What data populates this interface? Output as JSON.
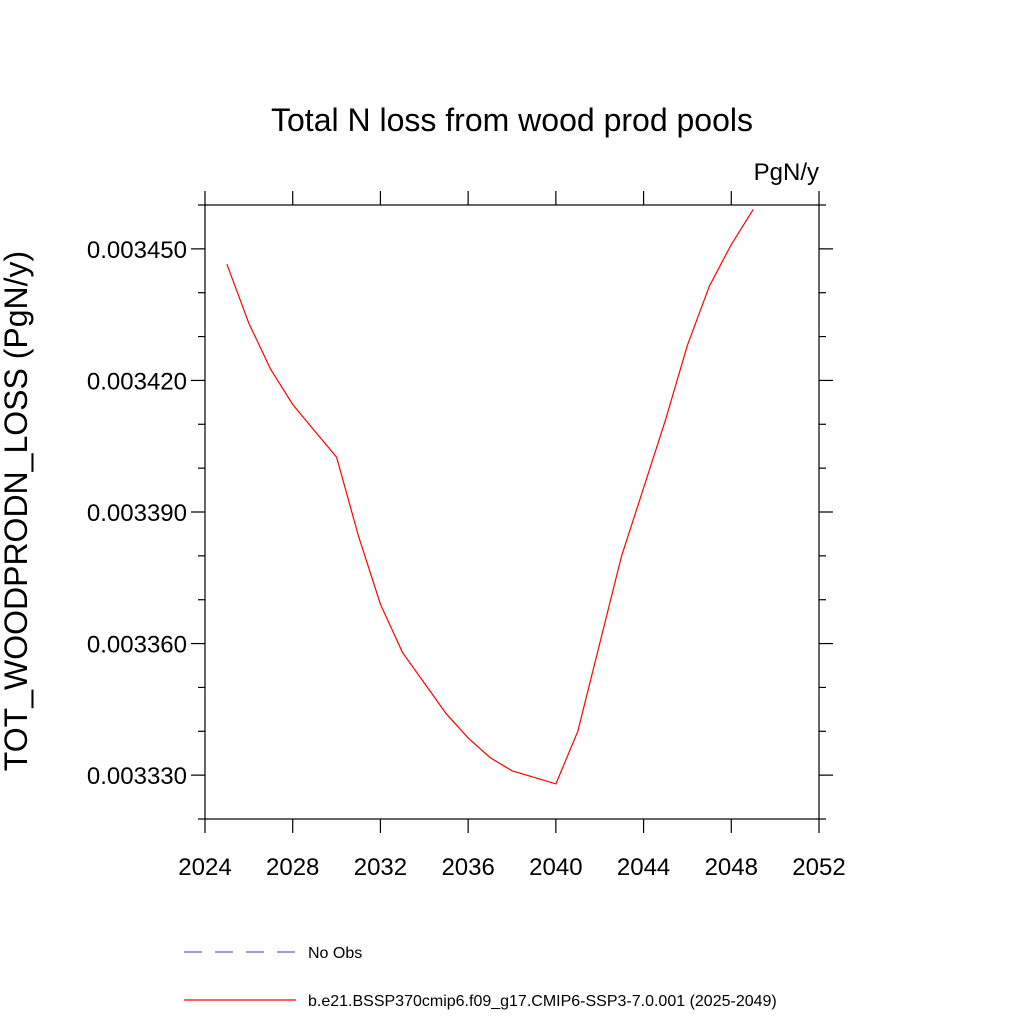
{
  "chart_data": {
    "type": "line",
    "title": "Total N loss from wood prod pools",
    "units": "PgN/y",
    "ylabel": "TOT_WOODPRODN_LOSS  (PgN/y)",
    "xlabel": "",
    "xlim": [
      2024,
      2052
    ],
    "ylim": [
      0.00332,
      0.00346
    ],
    "x_ticks": [
      2024,
      2028,
      2032,
      2036,
      2040,
      2044,
      2048,
      2052
    ],
    "x_tick_labels": [
      "2024",
      "2028",
      "2032",
      "2036",
      "2040",
      "2044",
      "2048",
      "2052"
    ],
    "y_ticks": [
      0.00333,
      0.00336,
      0.00339,
      0.00342,
      0.00345
    ],
    "y_tick_labels": [
      "0.003330",
      "0.003360",
      "0.003390",
      "0.003420",
      "0.003450"
    ],
    "grid": false,
    "legend_position": "bottom",
    "series": [
      {
        "name": "b.e21.BSSP370cmip6.f09_g17.CMIP6-SSP3-7.0.001 (2025-2049)",
        "color": "#ff0000",
        "style": "solid",
        "x": [
          2025,
          2026,
          2027,
          2028,
          2029,
          2030,
          2031,
          2032,
          2033,
          2034,
          2035,
          2036,
          2037,
          2038,
          2039,
          2040,
          2041,
          2042,
          2043,
          2044,
          2045,
          2046,
          2047,
          2048,
          2049
        ],
        "y": [
          0.0034465,
          0.003433,
          0.0034225,
          0.0034145,
          0.0034085,
          0.0034025,
          0.0033845,
          0.003369,
          0.003358,
          0.003351,
          0.003344,
          0.0033385,
          0.003334,
          0.003331,
          0.0033295,
          0.003328,
          0.00334,
          0.00336,
          0.00338,
          0.0033955,
          0.003411,
          0.003428,
          0.0034415,
          0.003451,
          0.003459
        ]
      }
    ],
    "legend": [
      {
        "label": "No Obs",
        "color": "#6a5acd",
        "style": "dashed"
      },
      {
        "label": "b.e21.BSSP370cmip6.f09_g17.CMIP6-SSP3-7.0.001 (2025-2049)",
        "color": "#ff0000",
        "style": "solid"
      }
    ]
  }
}
